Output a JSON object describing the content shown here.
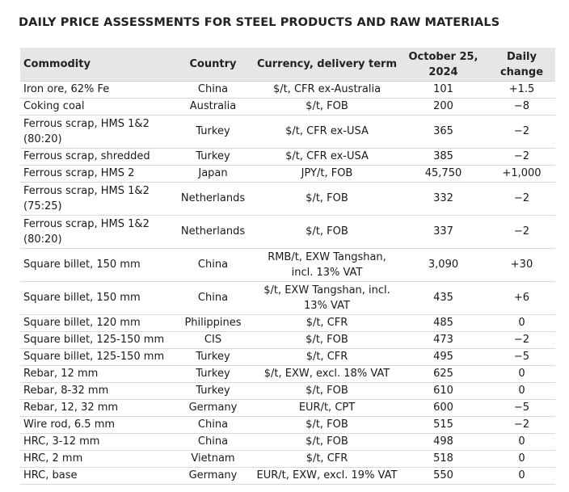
{
  "title": "DAILY PRICE ASSESSMENTS FOR STEEL PRODUCTS AND RAW MATERIALS",
  "columns": {
    "commodity": "Commodity",
    "country": "Country",
    "term": "Currency, delivery term",
    "date": "October 25, 2024",
    "change": "Daily change"
  },
  "rows": [
    {
      "commodity": "Iron ore, 62% Fe",
      "country": "China",
      "term": "$/t, CFR ex-Australia",
      "price": "101",
      "change": "+1.5"
    },
    {
      "commodity": "Coking coal",
      "country": "Australia",
      "term": "$/t, FOB",
      "price": "200",
      "change": "−8"
    },
    {
      "commodity": "Ferrous scrap, HMS 1&2 (80:20)",
      "country": "Turkey",
      "term": "$/t, CFR ex-USA",
      "price": "365",
      "change": "−2"
    },
    {
      "commodity": "Ferrous scrap, shredded",
      "country": "Turkey",
      "term": "$/t, CFR ex-USA",
      "price": "385",
      "change": "−2"
    },
    {
      "commodity": "Ferrous scrap, HMS 2",
      "country": "Japan",
      "term": "JPY/t, FOB",
      "price": "45,750",
      "change": "+1,000"
    },
    {
      "commodity": "Ferrous scrap, HMS 1&2 (75:25)",
      "country": "Netherlands",
      "term": "$/t, FOB",
      "price": "332",
      "change": "−2"
    },
    {
      "commodity": "Ferrous scrap, HMS 1&2 (80:20)",
      "country": "Netherlands",
      "term": "$/t, FOB",
      "price": "337",
      "change": "−2"
    },
    {
      "commodity": "Square billet, 150 mm",
      "country": "China",
      "term": "RMB/t, EXW Tangshan, incl. 13% VAT",
      "price": "3,090",
      "change": "+30"
    },
    {
      "commodity": "Square billet, 150 mm",
      "country": "China",
      "term": "$/t, EXW Tangshan, incl. 13% VAT",
      "price": "435",
      "change": "+6"
    },
    {
      "commodity": "Square billet, 120 mm",
      "country": "Philippines",
      "term": "$/t, CFR",
      "price": "485",
      "change": "0"
    },
    {
      "commodity": "Square billet, 125-150 mm",
      "country": "CIS",
      "term": "$/t, FOB",
      "price": "473",
      "change": "−2"
    },
    {
      "commodity": "Square billet, 125-150 mm",
      "country": "Turkey",
      "term": "$/t, CFR",
      "price": "495",
      "change": "−5"
    },
    {
      "commodity": "Rebar, 12 mm",
      "country": "Turkey",
      "term": "$/t, EXW, excl. 18% VAT",
      "price": "625",
      "change": "0"
    },
    {
      "commodity": "Rebar, 8-32 mm",
      "country": "Turkey",
      "term": "$/t, FOB",
      "price": "610",
      "change": "0"
    },
    {
      "commodity": "Rebar, 12, 32 mm",
      "country": "Germany",
      "term": "EUR/t, CPT",
      "price": "600",
      "change": "−5"
    },
    {
      "commodity": "Wire rod, 6.5 mm",
      "country": "China",
      "term": "$/t, FOB",
      "price": "515",
      "change": "−2"
    },
    {
      "commodity": "HRC, 3-12 mm",
      "country": "China",
      "term": "$/t, FOB",
      "price": "498",
      "change": "0"
    },
    {
      "commodity": "HRC, 2 mm",
      "country": "Vietnam",
      "term": "$/t, CFR",
      "price": "518",
      "change": "0"
    },
    {
      "commodity": "HRC, base",
      "country": "Germany",
      "term": "EUR/t, EXW, excl. 19% VAT",
      "price": "550",
      "change": "0"
    }
  ]
}
